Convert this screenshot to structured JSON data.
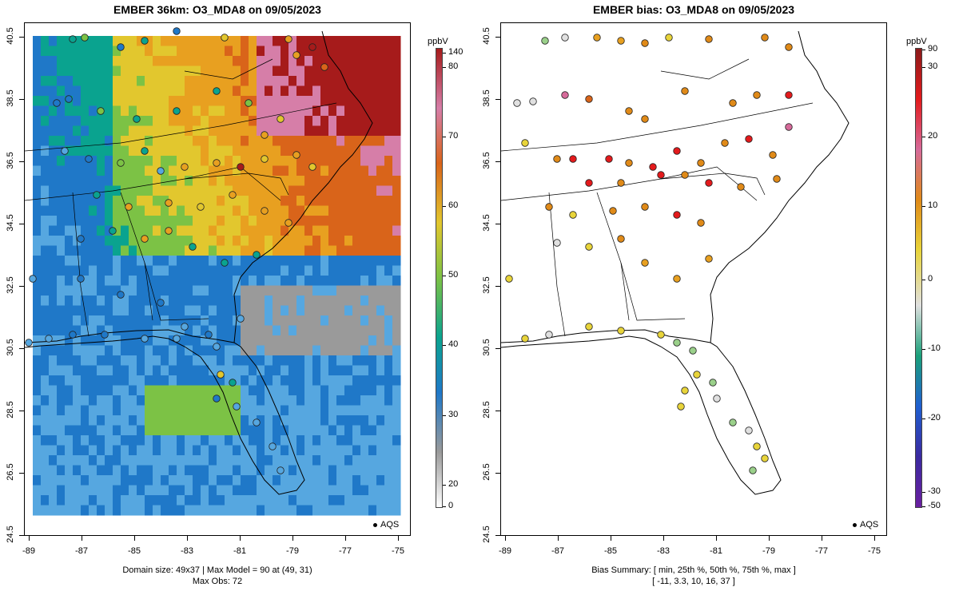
{
  "left": {
    "title": "EMBER 36km: O3_MDA8 on 09/05/2023",
    "footer1": "Domain size: 49x37 | Max Model = 90 at (49, 31)",
    "footer2": "Max Obs: 72",
    "legend": "AQS",
    "colorbar": {
      "unit": "ppbV",
      "labels": [
        "140",
        "80",
        "70",
        "60",
        "50",
        "40",
        "30",
        "20",
        "0"
      ],
      "colors": [
        "#a61b1b",
        "#d67ea8",
        "#d9641a",
        "#e2c72e",
        "#7cc245",
        "#0aa38f",
        "#1f78c8",
        "#9a9a9a",
        "#ffffff"
      ]
    }
  },
  "right": {
    "title": "EMBER bias: O3_MDA8 on 09/05/2023",
    "footer1": "Bias Summary: [ min, 25th %, 50th %, 75th %, max ]",
    "footer2": "[ -11,   3.3,   10,   16,   37 ]",
    "legend": "AQS",
    "colorbar": {
      "unit": "ppbV",
      "labels": [
        "90",
        "30",
        "20",
        "10",
        "0",
        "-10",
        "-20",
        "-30",
        "-50"
      ],
      "colors": [
        "#8b1a1a",
        "#e31a1c",
        "#d66a9a",
        "#e08a18",
        "#e8d43a",
        "#e0e0e0",
        "#1aa07a",
        "#1f5fd0",
        "#3a2aa0",
        "#6a1fa0"
      ]
    }
  },
  "axes": {
    "lat_ticks": [
      "40.5",
      "38.5",
      "36.5",
      "34.5",
      "32.5",
      "30.5",
      "28.5",
      "26.5",
      "24.5"
    ],
    "lon_ticks": [
      "-89",
      "-87",
      "-85",
      "-83",
      "-81",
      "-79",
      "-77",
      "-75"
    ]
  }
}
